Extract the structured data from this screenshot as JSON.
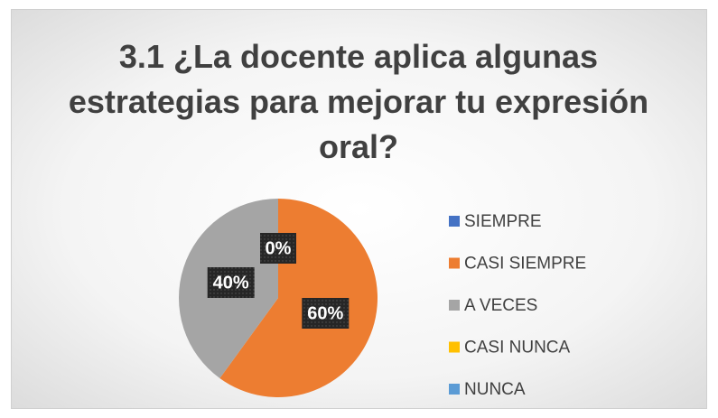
{
  "chart_data": {
    "type": "pie",
    "title": "3.1 ¿La docente aplica algunas estrategias para mejorar tu expresión oral?",
    "categories": [
      "SIEMPRE",
      "CASI SIEMPRE",
      "A VECES",
      "CASI NUNCA",
      "NUNCA"
    ],
    "values": [
      0,
      60,
      40,
      0,
      0
    ],
    "value_labels": [
      "0%",
      "60%",
      "40%",
      null,
      null
    ],
    "colors": [
      "#4472c4",
      "#ed7d31",
      "#a5a5a5",
      "#ffc000",
      "#5b9bd5"
    ],
    "legend": "right"
  }
}
